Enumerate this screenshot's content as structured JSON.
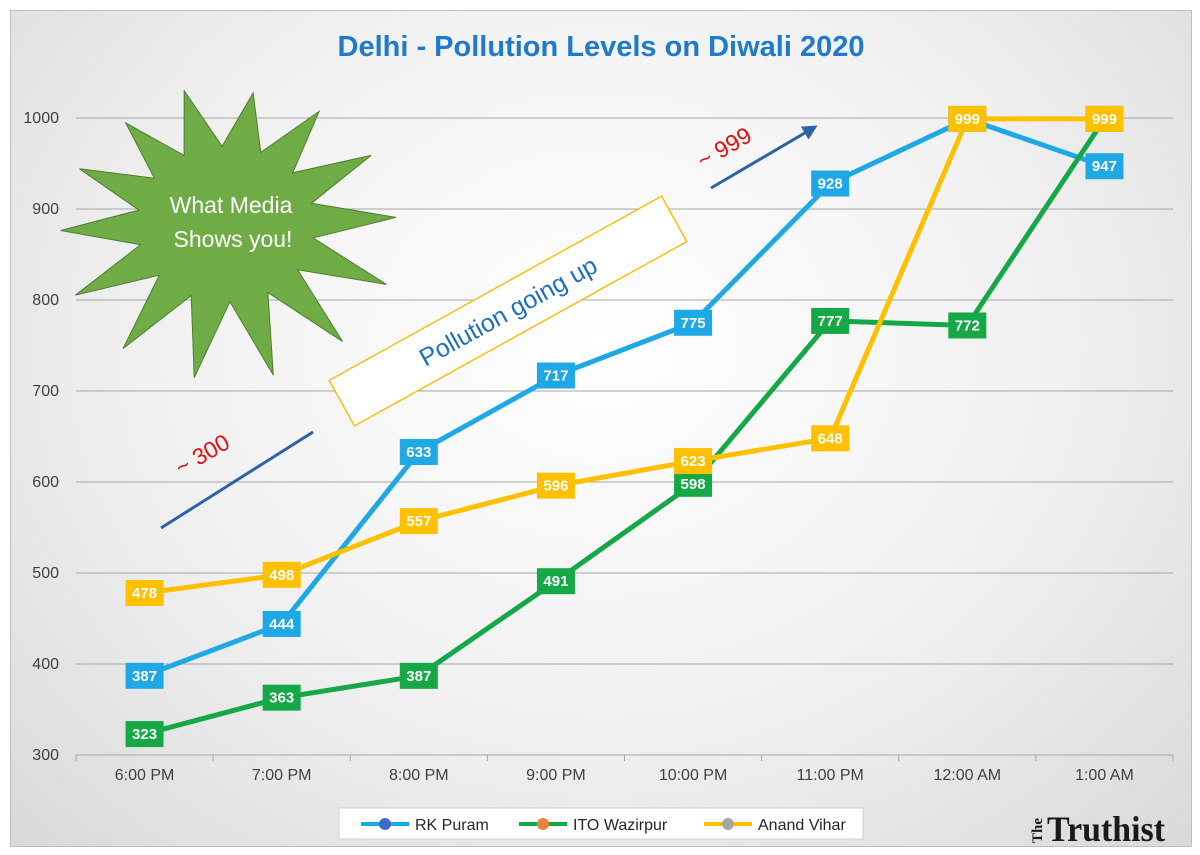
{
  "chart_data": {
    "type": "line",
    "title": "Delhi - Pollution Levels on Diwali 2020",
    "xlabel": "",
    "ylabel": "",
    "ylim": [
      300,
      1000
    ],
    "yticks": [
      300,
      400,
      500,
      600,
      700,
      800,
      900,
      1000
    ],
    "grid": true,
    "legend_position": "bottom-center",
    "categories": [
      "6:00 PM",
      "7:00 PM",
      "8:00 PM",
      "9:00 PM",
      "10:00 PM",
      "11:00 PM",
      "12:00 AM",
      "1:00 AM"
    ],
    "series": [
      {
        "name": "RK Puram",
        "line_color": "#1FA8E6",
        "marker_color": "#3B6CC8",
        "values": [
          387,
          444,
          633,
          717,
          775,
          928,
          999,
          947
        ]
      },
      {
        "name": "ITO Wazirpur",
        "line_color": "#16A846",
        "marker_color": "#E8833A",
        "values": [
          323,
          363,
          387,
          491,
          598,
          777,
          772,
          999
        ]
      },
      {
        "name": "Anand Vihar",
        "line_color": "#FFC000",
        "marker_color": "#A6A6A6",
        "values": [
          478,
          498,
          557,
          596,
          623,
          648,
          999,
          999
        ]
      }
    ],
    "annotations": {
      "starburst_text": [
        "What Media",
        "Shows you!"
      ],
      "banner_text": "Pollution going up",
      "low_label": "~ 300",
      "high_label": "~ 999"
    },
    "colors": {
      "title": "#1F7ACB",
      "starburst": "#6FAC46",
      "banner_border": "#F2C20F",
      "banner_text": "#1F6FBF",
      "arrow": "#2E62A8",
      "anno_label": "#E01010",
      "grid": "#a6a6a6"
    }
  },
  "brand": {
    "prefix": "The",
    "name": "Truthist"
  }
}
